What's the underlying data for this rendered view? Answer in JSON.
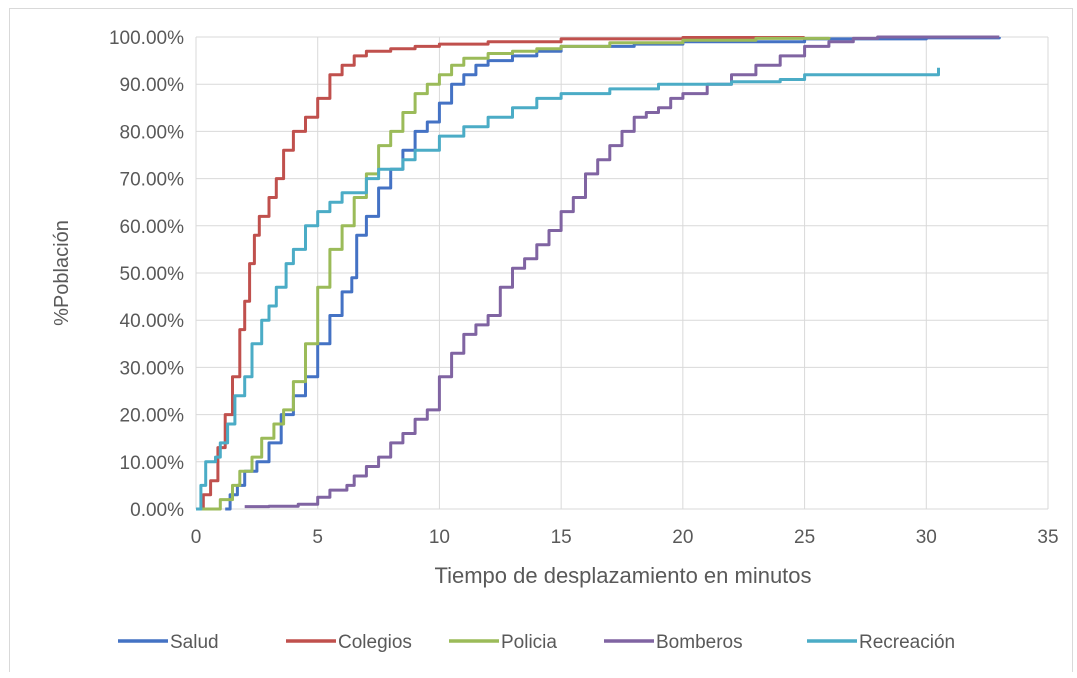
{
  "chart_data": {
    "type": "line",
    "title": "",
    "xlabel": "Tiempo de desplazamiento en minutos",
    "ylabel": "%Población",
    "xlim": [
      0,
      35
    ],
    "ylim": [
      0,
      100
    ],
    "x_ticks": [
      "0",
      "5",
      "10",
      "15",
      "20",
      "25",
      "30",
      "35"
    ],
    "y_ticks": [
      "0.00%",
      "10.00%",
      "20.00%",
      "30.00%",
      "40.00%",
      "50.00%",
      "60.00%",
      "70.00%",
      "80.00%",
      "90.00%",
      "100.00%"
    ],
    "grid": true,
    "legend_position": "bottom",
    "series": [
      {
        "name": "Salud",
        "color": "#4472c4",
        "points": [
          [
            1.2,
            0
          ],
          [
            1.4,
            3
          ],
          [
            1.7,
            5
          ],
          [
            2.0,
            8
          ],
          [
            2.5,
            10
          ],
          [
            3.0,
            14
          ],
          [
            3.5,
            20
          ],
          [
            4.0,
            24
          ],
          [
            4.5,
            28
          ],
          [
            5.0,
            35
          ],
          [
            5.5,
            41
          ],
          [
            6.0,
            46
          ],
          [
            6.4,
            49
          ],
          [
            6.6,
            58
          ],
          [
            7.0,
            62
          ],
          [
            7.5,
            68
          ],
          [
            8.0,
            72
          ],
          [
            8.5,
            76
          ],
          [
            9.0,
            80
          ],
          [
            9.5,
            82
          ],
          [
            10.0,
            86
          ],
          [
            10.5,
            90
          ],
          [
            11.0,
            92
          ],
          [
            11.5,
            94
          ],
          [
            12.0,
            95
          ],
          [
            13.0,
            96
          ],
          [
            14.0,
            97
          ],
          [
            15.0,
            98
          ],
          [
            18.0,
            98.5
          ],
          [
            20.0,
            99
          ],
          [
            25.0,
            99.6
          ],
          [
            30.0,
            99.8
          ],
          [
            33.0,
            100
          ]
        ]
      },
      {
        "name": "Colegios",
        "color": "#c0504d",
        "points": [
          [
            0,
            0
          ],
          [
            0.3,
            3
          ],
          [
            0.6,
            6
          ],
          [
            0.9,
            13
          ],
          [
            1.2,
            20
          ],
          [
            1.5,
            28
          ],
          [
            1.8,
            38
          ],
          [
            2.0,
            44
          ],
          [
            2.2,
            52
          ],
          [
            2.4,
            58
          ],
          [
            2.6,
            62
          ],
          [
            3.0,
            66
          ],
          [
            3.3,
            70
          ],
          [
            3.6,
            76
          ],
          [
            4.0,
            80
          ],
          [
            4.5,
            83
          ],
          [
            5.0,
            87
          ],
          [
            5.5,
            92
          ],
          [
            6.0,
            94
          ],
          [
            6.5,
            96
          ],
          [
            7.0,
            97
          ],
          [
            8.0,
            97.5
          ],
          [
            9.0,
            98
          ],
          [
            10.0,
            98.5
          ],
          [
            12.0,
            99
          ],
          [
            15.0,
            99.6
          ],
          [
            20.0,
            99.9
          ],
          [
            25.0,
            100
          ]
        ]
      },
      {
        "name": "Policia",
        "color": "#9bbb59",
        "points": [
          [
            0,
            0
          ],
          [
            1.0,
            2
          ],
          [
            1.5,
            5
          ],
          [
            1.8,
            8
          ],
          [
            2.3,
            11
          ],
          [
            2.7,
            15
          ],
          [
            3.2,
            18
          ],
          [
            3.6,
            21
          ],
          [
            4.0,
            27
          ],
          [
            4.5,
            35
          ],
          [
            5.0,
            47
          ],
          [
            5.5,
            55
          ],
          [
            6.0,
            60
          ],
          [
            6.5,
            66
          ],
          [
            7.0,
            71
          ],
          [
            7.5,
            77
          ],
          [
            8.0,
            80
          ],
          [
            8.5,
            84
          ],
          [
            9.0,
            88
          ],
          [
            9.5,
            90
          ],
          [
            10.0,
            92
          ],
          [
            10.5,
            94
          ],
          [
            11.0,
            95.5
          ],
          [
            12.0,
            96.5
          ],
          [
            13.0,
            97
          ],
          [
            14.0,
            97.5
          ],
          [
            15.0,
            98
          ],
          [
            17.0,
            98.8
          ],
          [
            20.0,
            99.3
          ],
          [
            23.0,
            99.7
          ],
          [
            26.0,
            100
          ]
        ]
      },
      {
        "name": "Bomberos",
        "color": "#8064a2",
        "points": [
          [
            2.0,
            0.5
          ],
          [
            3.0,
            0.6
          ],
          [
            4.2,
            1
          ],
          [
            5.0,
            2.5
          ],
          [
            5.5,
            4
          ],
          [
            6.2,
            5
          ],
          [
            6.5,
            7
          ],
          [
            7.0,
            9
          ],
          [
            7.5,
            11
          ],
          [
            8.0,
            14
          ],
          [
            8.5,
            16
          ],
          [
            9.0,
            19
          ],
          [
            9.5,
            21
          ],
          [
            10.0,
            28
          ],
          [
            10.5,
            33
          ],
          [
            11.0,
            37
          ],
          [
            11.5,
            39
          ],
          [
            12.0,
            41
          ],
          [
            12.5,
            47
          ],
          [
            13.0,
            51
          ],
          [
            13.5,
            53
          ],
          [
            14.0,
            56
          ],
          [
            14.5,
            59
          ],
          [
            15.0,
            63
          ],
          [
            15.5,
            66
          ],
          [
            16.0,
            71
          ],
          [
            16.5,
            74
          ],
          [
            17.0,
            77
          ],
          [
            17.5,
            80
          ],
          [
            18.0,
            83
          ],
          [
            18.5,
            84
          ],
          [
            19.0,
            85
          ],
          [
            19.5,
            87
          ],
          [
            20.0,
            88
          ],
          [
            21.0,
            90
          ],
          [
            22.0,
            92
          ],
          [
            23.0,
            94
          ],
          [
            24.0,
            96
          ],
          [
            25.0,
            98
          ],
          [
            26.0,
            99
          ],
          [
            27.0,
            99.7
          ],
          [
            28.0,
            100
          ],
          [
            33.0,
            100
          ]
        ]
      },
      {
        "name": "Recreación",
        "color": "#4bacc6",
        "points": [
          [
            0,
            0
          ],
          [
            0.2,
            5
          ],
          [
            0.4,
            10
          ],
          [
            0.8,
            11
          ],
          [
            1.0,
            14
          ],
          [
            1.3,
            18
          ],
          [
            1.6,
            24
          ],
          [
            2.0,
            28
          ],
          [
            2.3,
            35
          ],
          [
            2.7,
            40
          ],
          [
            3.0,
            43
          ],
          [
            3.3,
            47
          ],
          [
            3.7,
            52
          ],
          [
            4.0,
            55
          ],
          [
            4.5,
            60
          ],
          [
            5.0,
            63
          ],
          [
            5.5,
            65
          ],
          [
            6.0,
            67
          ],
          [
            7.0,
            70
          ],
          [
            7.5,
            72
          ],
          [
            8.5,
            74
          ],
          [
            9.0,
            76
          ],
          [
            10.0,
            79
          ],
          [
            11.0,
            81
          ],
          [
            12.0,
            83
          ],
          [
            13.0,
            85
          ],
          [
            14.0,
            87
          ],
          [
            15.0,
            88
          ],
          [
            17.0,
            89
          ],
          [
            19.0,
            90
          ],
          [
            22.0,
            90.5
          ],
          [
            24.0,
            91
          ],
          [
            25.0,
            92
          ],
          [
            28.0,
            92
          ],
          [
            30.5,
            93.5
          ]
        ]
      }
    ]
  }
}
